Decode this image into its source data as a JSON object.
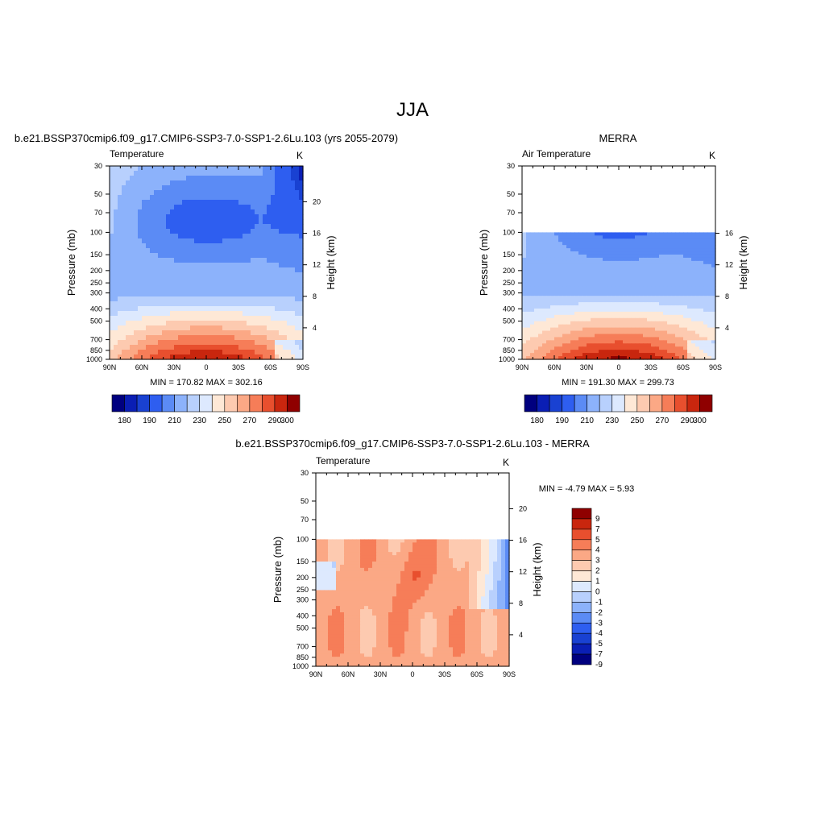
{
  "title": "JJA",
  "colorbar_main": {
    "colors": [
      "#00007f",
      "#0a1eb4",
      "#1941d2",
      "#2e5ef0",
      "#5b8bf5",
      "#8cb2fb",
      "#b8d0fd",
      "#dde9fe",
      "#fee8d6",
      "#fdcab0",
      "#fba885",
      "#f67d58",
      "#e84f2e",
      "#c9260e",
      "#8f0000"
    ],
    "labels": [
      "180",
      "190",
      "210",
      "230",
      "250",
      "270",
      "290",
      "300"
    ]
  },
  "colorbar_diff": {
    "colors": [
      "#00007f",
      "#0a1eb4",
      "#1941d2",
      "#2e5ef0",
      "#5b8bf5",
      "#8cb2fb",
      "#b8d0fd",
      "#dde9fe",
      "#fee8d6",
      "#fdcab0",
      "#fba885",
      "#f67d58",
      "#e84f2e",
      "#c9260e",
      "#8f0000"
    ],
    "labels": [
      "9",
      "7",
      "5",
      "4",
      "3",
      "2",
      "1",
      "0",
      "-1",
      "-2",
      "-3",
      "-4",
      "-5",
      "-7",
      "-9"
    ]
  },
  "chart_data": [
    {
      "type": "heatmap",
      "id": "model",
      "title": "b.e21.BSSP370cmip6.f09_g17.CMIP6-SSP3-7.0-SSP1-2.6Lu.103 (yrs 2055-2079)",
      "variable": "Temperature",
      "units": "K",
      "ylabel": "Pressure (mb)",
      "ylabel_right": "Height (km)",
      "x_ticks": [
        "90N",
        "60N",
        "30N",
        "0",
        "30S",
        "60S",
        "90S"
      ],
      "y_ticks": [
        "30",
        "50",
        "70",
        "100",
        "150",
        "200",
        "250",
        "300",
        "400",
        "500",
        "700",
        "850",
        "1000"
      ],
      "height_ticks": [
        "20",
        "16",
        "12",
        "8",
        "4"
      ],
      "stats": "MIN = 170.82  MAX = 302.16",
      "min": 170.82,
      "max": 302.16,
      "p_top": 30,
      "mask_above": null
    },
    {
      "type": "heatmap",
      "id": "obs",
      "title": "MERRA",
      "variable": "Air Temperature",
      "units": "K",
      "ylabel": "Pressure (mb)",
      "ylabel_right": "Height (km)",
      "x_ticks": [
        "90N",
        "60N",
        "30N",
        "0",
        "30S",
        "60S",
        "90S"
      ],
      "y_ticks": [
        "30",
        "50",
        "70",
        "100",
        "150",
        "200",
        "250",
        "300",
        "400",
        "500",
        "700",
        "850",
        "1000"
      ],
      "height_ticks": [
        "16",
        "12",
        "8",
        "4"
      ],
      "stats": "MIN = 191.30  MAX = 299.73",
      "min": 191.3,
      "max": 299.73,
      "p_top": 100,
      "mask_above": 100
    },
    {
      "type": "heatmap",
      "id": "diff",
      "title": "b.e21.BSSP370cmip6.f09_g17.CMIP6-SSP3-7.0-SSP1-2.6Lu.103 - MERRA",
      "variable": "Temperature",
      "units": "K",
      "ylabel": "Pressure (mb)",
      "ylabel_right": "Height (km)",
      "x_ticks": [
        "90N",
        "60N",
        "30N",
        "0",
        "30S",
        "60S",
        "90S"
      ],
      "y_ticks": [
        "30",
        "50",
        "70",
        "100",
        "150",
        "200",
        "250",
        "300",
        "400",
        "500",
        "700",
        "850",
        "1000"
      ],
      "height_ticks": [
        "20",
        "16",
        "12",
        "8",
        "4"
      ],
      "stats": "MIN =  -4.79  MAX =   5.93",
      "min": -4.79,
      "max": 5.93,
      "p_top": 100,
      "mask_above": 100
    }
  ]
}
